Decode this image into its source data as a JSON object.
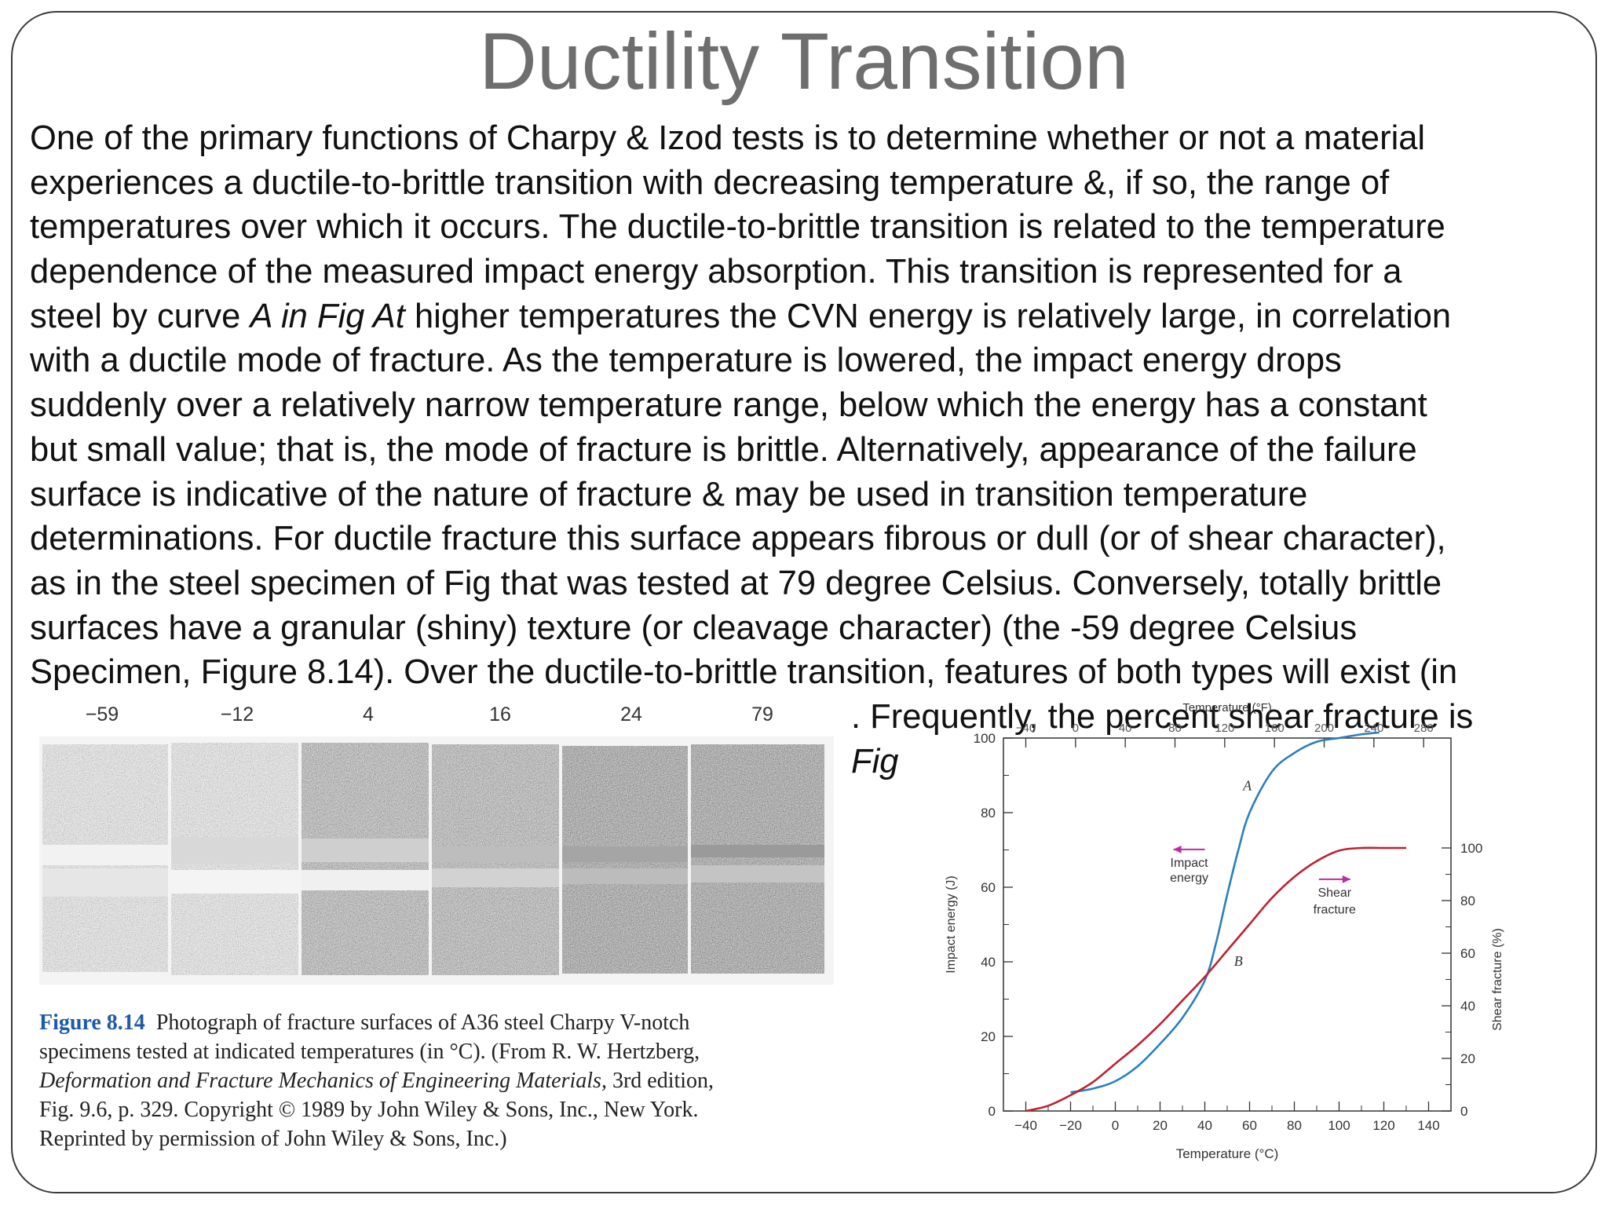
{
  "slide": {
    "title": "Ductility Transition",
    "body_lines": [
      "One of the primary functions of Charpy & Izod tests is to determine whether or not a material",
      "experiences a ductile-to-brittle transition with decreasing temperature &, if so, the range of",
      "temperatures over which it occurs. The ductile-to-brittle transition is related to the temperature",
      "dependence of the measured impact energy absorption. This transition is represented for a",
      "with a ductile mode of fracture. As the temperature is lowered, the impact energy drops",
      "suddenly over a relatively narrow temperature range, below which the energy has a constant",
      "but small value; that is, the mode of fracture is brittle. Alternatively, appearance of the failure",
      "surface is indicative of the nature of fracture & may be used in transition temperature",
      "determinations. For ductile fracture this surface appears fibrous or dull (or of shear character),",
      "as in the steel specimen of Fig that was tested at 79 degree Celsius. Conversely, totally brittle",
      "surfaces have a granular (shiny) texture (or cleavage character) (the -59 degree Celsius",
      "Specimen, Figure 8.14). Over the ductile-to-brittle transition, features of both types will exist (in"
    ],
    "line5_a": "steel by curve ",
    "line5_italic": "A in Fig At",
    "line5_b": " higher temperatures the CVN energy is relatively large, in correlation",
    "partial_line_1": ". Frequently, the percent shear fracture is",
    "partial_line_2": "Fig"
  },
  "photo_figure": {
    "temperature_labels": [
      "−59",
      "−12",
      "4",
      "16",
      "24",
      "79"
    ],
    "caption_label": "Figure 8.14",
    "caption_line1": "Photograph of fracture surfaces of A36 steel Charpy V-notch",
    "caption_line2": "specimens tested at indicated temperatures (in °C). (From R. W. Hertzberg,",
    "caption_line3_italic": "Deformation and Fracture Mechanics of Engineering Materials,",
    "caption_line3_rest": " 3rd edition,",
    "caption_line4": "Fig. 9.6, p. 329. Copyright © 1989 by John Wiley & Sons, Inc., New York.",
    "caption_line5": "Reprinted by permission of John Wiley & Sons, Inc.)"
  },
  "chart_data": {
    "type": "line",
    "title": "",
    "xlabel": "Temperature (°C)",
    "ylabel": "Impact energy (J)",
    "y2label": "Shear fracture (%)",
    "x2label": "Temperature (°F)",
    "xlim": [
      -50,
      150
    ],
    "ylim": [
      0,
      100
    ],
    "y2lim": [
      0,
      100
    ],
    "x_ticks": [
      -40,
      -20,
      0,
      20,
      40,
      60,
      80,
      100,
      120,
      140
    ],
    "y_ticks": [
      0,
      20,
      40,
      60,
      80,
      100
    ],
    "y2_ticks": [
      0,
      20,
      40,
      60,
      80,
      100
    ],
    "x2_ticks": [
      -40,
      0,
      40,
      80,
      120,
      160,
      200,
      240,
      280
    ],
    "x2_tick_labels": [
      "−40",
      "0",
      "40",
      "80",
      "120",
      "160",
      "200",
      "240",
      "280"
    ],
    "grid": false,
    "series": [
      {
        "name": "A",
        "axis": "left",
        "color": "#2a7fc0",
        "x": [
          -20,
          -10,
          0,
          10,
          20,
          30,
          40,
          45,
          50,
          55,
          60,
          70,
          80,
          90,
          100,
          110,
          118
        ],
        "y": [
          5,
          6,
          8,
          12,
          18,
          25,
          35,
          45,
          58,
          70,
          80,
          91,
          96,
          99,
          100,
          101,
          101.5
        ]
      },
      {
        "name": "B",
        "axis": "right",
        "color": "#c0202f",
        "x": [
          -40,
          -30,
          -20,
          -10,
          0,
          10,
          20,
          30,
          40,
          50,
          60,
          70,
          80,
          90,
          100,
          110,
          120,
          130
        ],
        "y": [
          0,
          2,
          6,
          11,
          18,
          25,
          33,
          42,
          51,
          61,
          71,
          81,
          89,
          95,
          99,
          100,
          100,
          100
        ]
      }
    ],
    "annotations": [
      {
        "text": "A",
        "x": 59,
        "y": 86
      },
      {
        "text": "B",
        "x": 55,
        "y": 39
      },
      {
        "text": "Impact",
        "x": 33,
        "y": 65.5,
        "arrow": "left",
        "arrow_color": "#c02aa0"
      },
      {
        "text": "energy",
        "x": 33,
        "y": 61.5
      },
      {
        "text": "Shear",
        "x": 98,
        "y": 57.5,
        "arrow": "right",
        "arrow_color": "#c02aa0"
      },
      {
        "text": "fracture",
        "x": 98,
        "y": 53
      }
    ]
  }
}
